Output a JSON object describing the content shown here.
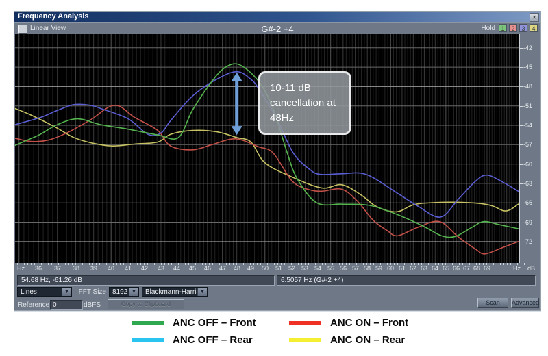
{
  "window": {
    "title": "Frequency Analysis",
    "toolbar": {
      "linear_view_label": "Linear View",
      "linear_view_checked": false,
      "note_title": "G#-2 +4",
      "hold_label": "Hold",
      "hold_buttons": [
        {
          "label": "1",
          "color": "#7cc47c"
        },
        {
          "label": "2",
          "color": "#e89090"
        },
        {
          "label": "3",
          "color": "#9094dc"
        },
        {
          "label": "4",
          "color": "#ddd584"
        }
      ]
    },
    "status": {
      "cursor": "54.68 Hz, -61.26 dB",
      "frequency": "6.5057 Hz (G#-2 +4)"
    },
    "controls": {
      "display_mode": "Lines",
      "fft_size_label": "FFT Size",
      "fft_size": "8192",
      "window_function": "Blackmann-Harris",
      "reference_label": "Reference",
      "reference_value": "0",
      "reference_unit": "dBFS",
      "copy_button": "Copy to Clipboard",
      "scan_button": "Scan",
      "advanced_button": "Advanced"
    }
  },
  "icons": {
    "close": "✕",
    "dropdown": "▼"
  },
  "annotation": {
    "text": "10-11 dB cancellation at 48Hz",
    "arrow": {
      "hz": 48,
      "from_db": -45.8,
      "to_db": -55.5,
      "color": "#6f9fd8"
    }
  },
  "legend": [
    {
      "label": "ANC OFF – Front",
      "color": "#2fa84f"
    },
    {
      "label": "ANC OFF – Rear",
      "color": "#29c5f0"
    },
    {
      "label": "ANC ON – Front",
      "color": "#ee3124"
    },
    {
      "label": "ANC ON – Rear",
      "color": "#f6ee30"
    }
  ],
  "chart_data": {
    "type": "line",
    "title": "G#-2 +4",
    "x_axis": {
      "unit": "Hz",
      "scale": "log",
      "min": 34.8,
      "max": 72.3,
      "ticks": [
        36,
        37,
        38,
        39,
        40,
        41,
        42,
        43,
        44,
        45,
        46,
        47,
        48,
        49,
        50,
        51,
        52,
        53,
        54,
        55,
        56,
        57,
        58,
        59,
        60,
        61,
        62,
        63,
        64,
        65,
        66,
        67,
        68,
        69
      ]
    },
    "y_axis": {
      "unit": "dB",
      "max": -39.8,
      "min": -75.3,
      "ticks": [
        -42,
        -45,
        -48,
        -51,
        -54,
        -57,
        -60,
        -63,
        -66,
        -69,
        -72
      ]
    },
    "series": [
      {
        "name": "ANC OFF – Front",
        "color": "#55b44e",
        "points": [
          [
            34.8,
            -57.1
          ],
          [
            35.5,
            -56.2
          ],
          [
            36.1,
            -55.4
          ],
          [
            37,
            -53.9
          ],
          [
            38.1,
            -53
          ],
          [
            39.4,
            -53.9
          ],
          [
            41,
            -54.6
          ],
          [
            42.8,
            -55.5
          ],
          [
            44.1,
            -55.9
          ],
          [
            45,
            -51.7
          ],
          [
            46.2,
            -47.5
          ],
          [
            47.1,
            -45.2
          ],
          [
            48,
            -44.5
          ],
          [
            49,
            -45.9
          ],
          [
            49.9,
            -48.3
          ],
          [
            50.7,
            -52
          ],
          [
            51.6,
            -58
          ],
          [
            52.4,
            -62.3
          ],
          [
            53.9,
            -66
          ],
          [
            55.9,
            -66.2
          ],
          [
            58.2,
            -66.4
          ],
          [
            60.7,
            -67.9
          ],
          [
            63,
            -69.7
          ],
          [
            64.6,
            -71.1
          ],
          [
            65.9,
            -71.2
          ],
          [
            67.5,
            -69.8
          ],
          [
            68.7,
            -68.9
          ],
          [
            70.3,
            -69.4
          ],
          [
            72.2,
            -70
          ]
        ]
      },
      {
        "name": "ANC OFF – Rear",
        "color": "#5a5ed2",
        "points": [
          [
            34.8,
            -53.9
          ],
          [
            36.1,
            -52.8
          ],
          [
            37,
            -51.7
          ],
          [
            37.9,
            -50.8
          ],
          [
            38.8,
            -50.9
          ],
          [
            39.4,
            -51.4
          ],
          [
            41,
            -53
          ],
          [
            42.2,
            -55.4
          ],
          [
            43,
            -55.2
          ],
          [
            43.6,
            -53.3
          ],
          [
            45,
            -49.5
          ],
          [
            46.6,
            -46.9
          ],
          [
            48,
            -45.7
          ],
          [
            49,
            -46.9
          ],
          [
            49.6,
            -48.5
          ],
          [
            50.8,
            -52.7
          ],
          [
            52.1,
            -58.3
          ],
          [
            53.4,
            -60.9
          ],
          [
            54.2,
            -61.6
          ],
          [
            55.9,
            -61.5
          ],
          [
            57.9,
            -61.6
          ],
          [
            60.5,
            -64.4
          ],
          [
            62.4,
            -66.5
          ],
          [
            64.5,
            -68.2
          ],
          [
            66.2,
            -65.4
          ],
          [
            67.9,
            -62.6
          ],
          [
            69,
            -61.7
          ],
          [
            70.6,
            -62.8
          ],
          [
            72.2,
            -64.2
          ]
        ]
      },
      {
        "name": "ANC ON – Front",
        "color": "#c25048",
        "points": [
          [
            34.8,
            -56
          ],
          [
            35.6,
            -56.5
          ],
          [
            36.5,
            -56.3
          ],
          [
            37.5,
            -55.2
          ],
          [
            38.8,
            -53.2
          ],
          [
            40.2,
            -50.9
          ],
          [
            41.4,
            -52.8
          ],
          [
            42.8,
            -54.8
          ],
          [
            43.6,
            -57.2
          ],
          [
            45,
            -57.8
          ],
          [
            46.3,
            -57
          ],
          [
            47.9,
            -56.1
          ],
          [
            49.5,
            -57.3
          ],
          [
            50.6,
            -58.3
          ],
          [
            52,
            -62.6
          ],
          [
            53.2,
            -63.9
          ],
          [
            54.3,
            -64.2
          ],
          [
            55.9,
            -63.9
          ],
          [
            57.2,
            -65.8
          ],
          [
            58.5,
            -68.7
          ],
          [
            59.7,
            -70.3
          ],
          [
            60.6,
            -71.1
          ],
          [
            62.4,
            -69.8
          ],
          [
            64.4,
            -68.9
          ],
          [
            66.2,
            -71.3
          ],
          [
            67.9,
            -73.2
          ],
          [
            68.8,
            -73.9
          ],
          [
            70.6,
            -72.9
          ],
          [
            72.2,
            -72
          ]
        ]
      },
      {
        "name": "ANC ON – Rear",
        "color": "#c6c162",
        "points": [
          [
            34.8,
            -51.4
          ],
          [
            35.6,
            -52.4
          ],
          [
            36.9,
            -54.3
          ],
          [
            37.9,
            -55.9
          ],
          [
            39,
            -56.8
          ],
          [
            40.1,
            -57.2
          ],
          [
            41.4,
            -56.9
          ],
          [
            42.8,
            -56.6
          ],
          [
            43.6,
            -55.4
          ],
          [
            45,
            -54.8
          ],
          [
            46.6,
            -55
          ],
          [
            48,
            -55.9
          ],
          [
            49,
            -56.6
          ],
          [
            50,
            -59.8
          ],
          [
            52,
            -62
          ],
          [
            54.3,
            -63.7
          ],
          [
            55.9,
            -63.2
          ],
          [
            57.5,
            -64.8
          ],
          [
            58.8,
            -66.6
          ],
          [
            60.5,
            -67.4
          ],
          [
            62,
            -66.3
          ],
          [
            63.5,
            -66
          ],
          [
            65.9,
            -65.9
          ],
          [
            68.3,
            -66.1
          ],
          [
            69.6,
            -66.5
          ],
          [
            70.6,
            -67.2
          ],
          [
            71.3,
            -67.1
          ],
          [
            72.2,
            -66.2
          ]
        ]
      }
    ]
  }
}
